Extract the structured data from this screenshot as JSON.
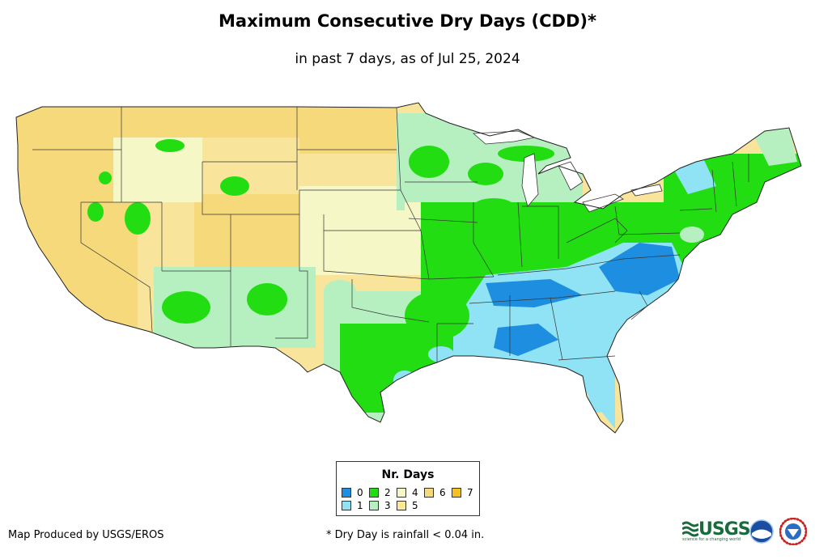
{
  "title": "Maximum Consecutive Dry Days (CDD)*",
  "subtitle": "in past 7 days, as of Jul 25, 2024",
  "legend": {
    "title": "Nr. Days",
    "items": [
      {
        "label": "0",
        "color": "#1e8fe0"
      },
      {
        "label": "1",
        "color": "#8fe3f5"
      },
      {
        "label": "2",
        "color": "#22dd11"
      },
      {
        "label": "3",
        "color": "#b6f0c0"
      },
      {
        "label": "4",
        "color": "#f6f7c6"
      },
      {
        "label": "5",
        "color": "#fae99a"
      },
      {
        "label": "6",
        "color": "#f6d97a"
      },
      {
        "label": "7",
        "color": "#f3c221"
      }
    ]
  },
  "footer": {
    "produced_by": "Map Produced by USGS/EROS",
    "note": "* Dry Day is rainfall < 0.04 in."
  },
  "logos": {
    "usgs": "USGS",
    "usgs_tagline": "science for a changing world",
    "noaa": "noaa-logo",
    "nws": "nws-logo"
  }
}
